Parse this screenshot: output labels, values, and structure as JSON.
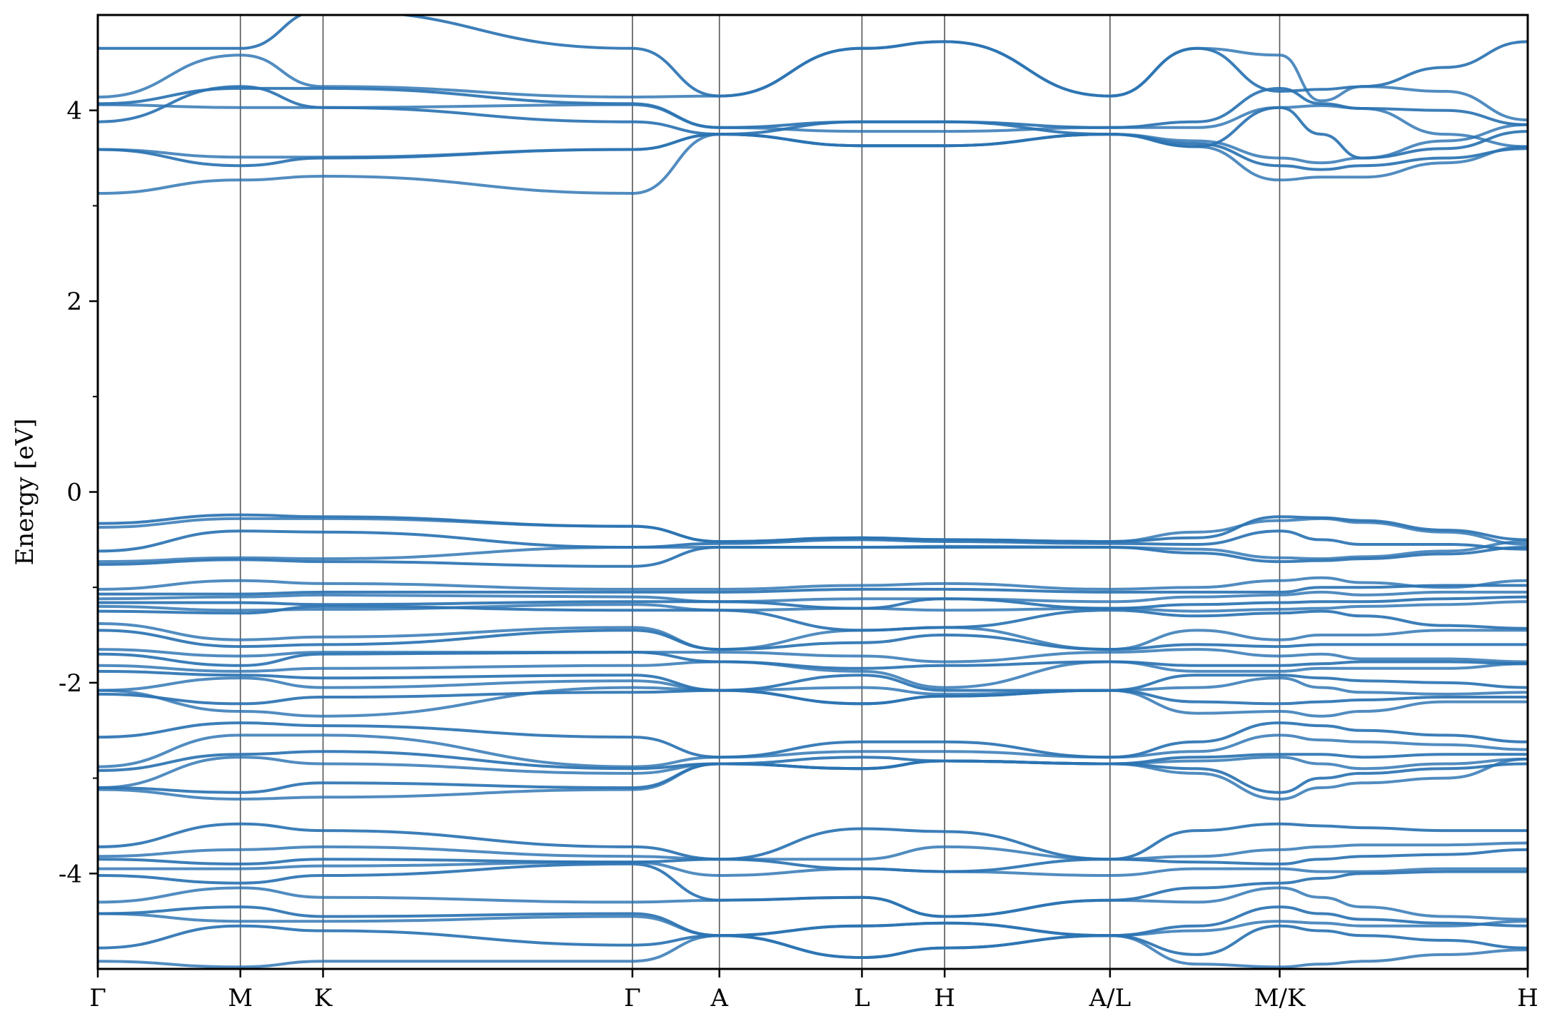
{
  "chart_data": {
    "type": "line",
    "title": "",
    "xlabel": "",
    "ylabel": "Energy [eV]",
    "ylim": [
      -5,
      5
    ],
    "yticks": [
      -4,
      -2,
      0,
      2,
      4
    ],
    "yticklabels": [
      "-4",
      "-2",
      "0",
      "2",
      "4"
    ],
    "yminor_ticks": [
      -3,
      -1,
      1,
      3
    ],
    "grid": false,
    "legend": "none",
    "line_color": "#2b73b2",
    "path_x": [
      0,
      1.0,
      1.58,
      3.75,
      4.36,
      5.36,
      5.94,
      7.1,
      7.71,
      8.29,
      8.58,
      8.87,
      9.45,
      10.03
    ],
    "high_symmetry_points": [
      {
        "label": "Γ",
        "x": 0
      },
      {
        "label": "M",
        "x": 1.0
      },
      {
        "label": "K",
        "x": 1.58
      },
      {
        "label": "Γ",
        "x": 3.75
      },
      {
        "label": "A",
        "x": 4.36
      },
      {
        "label": "L",
        "x": 5.36
      },
      {
        "label": "H",
        "x": 5.94
      },
      {
        "label": "A/L",
        "x": 7.1
      },
      {
        "label": "M/K",
        "x": 8.29
      },
      {
        "label": "H",
        "x": 10.03
      }
    ],
    "segments": [
      {
        "from": "Γ",
        "to": "M",
        "x0": 0,
        "x1": 1.0
      },
      {
        "from": "M",
        "to": "K",
        "x0": 1.0,
        "x1": 1.58
      },
      {
        "from": "K",
        "to": "Γ",
        "x0": 1.58,
        "x1": 3.75
      },
      {
        "from": "Γ",
        "to": "A",
        "x0": 3.75,
        "x1": 4.36
      },
      {
        "from": "A",
        "to": "L",
        "x0": 4.36,
        "x1": 5.36
      },
      {
        "from": "L",
        "to": "H",
        "x0": 5.36,
        "x1": 5.94
      },
      {
        "from": "H",
        "to": "A",
        "x0": 5.94,
        "x1": 7.1
      },
      {
        "from": "L",
        "to": "M",
        "x0": 7.1,
        "x1": 8.29
      },
      {
        "from": "K",
        "to": "H",
        "x0": 8.29,
        "x1": 10.03
      }
    ],
    "series": [
      {
        "values": [
          4.65,
          4.65,
          5.05,
          4.65,
          4.15,
          4.65,
          4.72,
          4.15,
          4.65,
          4.2,
          4.22,
          4.25,
          4.45,
          4.72
        ]
      },
      {
        "values": [
          4.14,
          4.58,
          4.25,
          4.14,
          4.15,
          4.65,
          4.72,
          4.15,
          4.65,
          4.58,
          4.1,
          4.25,
          4.2,
          3.9
        ]
      },
      {
        "values": [
          4.07,
          4.23,
          4.23,
          4.07,
          3.82,
          3.88,
          3.88,
          3.82,
          3.88,
          4.23,
          4.07,
          4.02,
          4.0,
          3.85
        ]
      },
      {
        "values": [
          4.06,
          4.03,
          4.03,
          4.06,
          3.82,
          3.78,
          3.78,
          3.82,
          3.82,
          4.03,
          4.05,
          4.02,
          3.75,
          3.62
        ]
      },
      {
        "values": [
          3.88,
          4.25,
          4.03,
          3.88,
          3.75,
          3.88,
          3.88,
          3.75,
          3.62,
          4.03,
          3.75,
          3.5,
          3.6,
          3.78
        ]
      },
      {
        "values": [
          3.59,
          3.51,
          3.51,
          3.59,
          3.75,
          3.63,
          3.63,
          3.75,
          3.68,
          3.5,
          3.45,
          3.5,
          3.68,
          3.85
        ]
      },
      {
        "values": [
          3.59,
          3.42,
          3.5,
          3.59,
          3.75,
          3.63,
          3.63,
          3.75,
          3.65,
          3.42,
          3.38,
          3.42,
          3.5,
          3.6
        ]
      },
      {
        "values": [
          3.13,
          3.27,
          3.31,
          3.13,
          3.75,
          3.63,
          3.63,
          3.75,
          3.62,
          3.27,
          3.3,
          3.3,
          3.45,
          3.62
        ]
      },
      {
        "values": [
          -0.33,
          -0.24,
          -0.26,
          -0.36,
          -0.52,
          -0.48,
          -0.5,
          -0.52,
          -0.48,
          -0.26,
          -0.27,
          -0.3,
          -0.4,
          -0.5
        ]
      },
      {
        "values": [
          -0.37,
          -0.28,
          -0.28,
          -0.36,
          -0.52,
          -0.48,
          -0.5,
          -0.52,
          -0.42,
          -0.3,
          -0.28,
          -0.32,
          -0.42,
          -0.55
        ]
      },
      {
        "values": [
          -0.62,
          -0.41,
          -0.42,
          -0.58,
          -0.54,
          -0.5,
          -0.52,
          -0.54,
          -0.55,
          -0.41,
          -0.5,
          -0.55,
          -0.55,
          -0.6
        ]
      },
      {
        "values": [
          -0.73,
          -0.69,
          -0.7,
          -0.58,
          -0.58,
          -0.58,
          -0.57,
          -0.58,
          -0.6,
          -0.69,
          -0.7,
          -0.68,
          -0.62,
          -0.52
        ]
      },
      {
        "values": [
          -0.76,
          -0.71,
          -0.73,
          -0.78,
          -0.58,
          -0.58,
          -0.58,
          -0.58,
          -0.64,
          -0.73,
          -0.72,
          -0.7,
          -0.65,
          -0.58
        ]
      },
      {
        "values": [
          -1.02,
          -0.93,
          -0.96,
          -1.02,
          -1.02,
          -0.98,
          -0.96,
          -1.02,
          -1.0,
          -0.93,
          -0.9,
          -0.95,
          -1.0,
          -0.93
        ]
      },
      {
        "values": [
          -1.07,
          -1.07,
          -1.05,
          -1.05,
          -1.05,
          -1.02,
          -1.02,
          -1.05,
          -1.05,
          -1.05,
          -1.0,
          -1.0,
          -0.98,
          -0.98
        ]
      },
      {
        "values": [
          -1.12,
          -1.1,
          -1.08,
          -1.1,
          -1.15,
          -1.12,
          -1.12,
          -1.15,
          -1.1,
          -1.08,
          -1.05,
          -1.08,
          -1.05,
          -1.05
        ]
      },
      {
        "values": [
          -1.16,
          -1.16,
          -1.18,
          -1.15,
          -1.15,
          -1.22,
          -1.12,
          -1.22,
          -1.18,
          -1.16,
          -1.15,
          -1.15,
          -1.12,
          -1.1
        ]
      },
      {
        "values": [
          -1.2,
          -1.24,
          -1.23,
          -1.18,
          -1.24,
          -1.22,
          -1.24,
          -1.22,
          -1.25,
          -1.23,
          -1.22,
          -1.2,
          -1.18,
          -1.15
        ]
      },
      {
        "values": [
          -1.25,
          -1.27,
          -1.2,
          -1.24,
          -1.24,
          -1.45,
          -1.42,
          -1.24,
          -1.3,
          -1.27,
          -1.25,
          -1.3,
          -1.4,
          -1.43
        ]
      },
      {
        "values": [
          -1.38,
          -1.55,
          -1.52,
          -1.42,
          -1.65,
          -1.45,
          -1.42,
          -1.65,
          -1.45,
          -1.55,
          -1.5,
          -1.5,
          -1.45,
          -1.45
        ]
      },
      {
        "values": [
          -1.45,
          -1.62,
          -1.6,
          -1.45,
          -1.65,
          -1.58,
          -1.5,
          -1.65,
          -1.6,
          -1.62,
          -1.6,
          -1.6,
          -1.6,
          -1.6
        ]
      },
      {
        "values": [
          -1.65,
          -1.72,
          -1.68,
          -1.68,
          -1.68,
          -1.72,
          -1.78,
          -1.68,
          -1.65,
          -1.72,
          -1.7,
          -1.75,
          -1.75,
          -1.78
        ]
      },
      {
        "values": [
          -1.7,
          -1.82,
          -1.7,
          -1.68,
          -1.78,
          -1.85,
          -1.82,
          -1.78,
          -1.82,
          -1.82,
          -1.8,
          -1.78,
          -1.78,
          -1.8
        ]
      },
      {
        "values": [
          -1.82,
          -1.88,
          -1.85,
          -1.82,
          -1.78,
          -1.88,
          -2.05,
          -1.78,
          -1.88,
          -1.88,
          -1.85,
          -1.85,
          -1.85,
          -1.8
        ]
      },
      {
        "values": [
          -1.88,
          -1.92,
          -1.95,
          -1.92,
          -2.08,
          -1.92,
          -2.08,
          -2.08,
          -1.92,
          -1.92,
          -1.95,
          -1.98,
          -2.0,
          -2.05
        ]
      },
      {
        "values": [
          -2.08,
          -1.95,
          -2.05,
          -1.98,
          -2.08,
          -2.05,
          -2.12,
          -2.08,
          -2.05,
          -1.95,
          -2.05,
          -2.1,
          -2.12,
          -2.1
        ]
      },
      {
        "values": [
          -2.12,
          -2.22,
          -2.15,
          -2.1,
          -2.08,
          -2.22,
          -2.14,
          -2.08,
          -2.2,
          -2.22,
          -2.2,
          -2.18,
          -2.15,
          -2.15
        ]
      },
      {
        "values": [
          -2.08,
          -2.3,
          -2.35,
          -2.05,
          -2.08,
          -2.22,
          -2.14,
          -2.08,
          -2.32,
          -2.3,
          -2.35,
          -2.3,
          -2.2,
          -2.2
        ]
      },
      {
        "values": [
          -2.57,
          -2.42,
          -2.45,
          -2.57,
          -2.78,
          -2.62,
          -2.62,
          -2.78,
          -2.62,
          -2.42,
          -2.45,
          -2.5,
          -2.55,
          -2.62
        ]
      },
      {
        "values": [
          -2.88,
          -2.55,
          -2.55,
          -2.88,
          -2.78,
          -2.72,
          -2.72,
          -2.78,
          -2.72,
          -2.55,
          -2.6,
          -2.62,
          -2.65,
          -2.7
        ]
      },
      {
        "values": [
          -2.92,
          -2.75,
          -2.72,
          -2.9,
          -2.85,
          -2.78,
          -2.82,
          -2.85,
          -2.78,
          -2.75,
          -2.75,
          -2.78,
          -2.75,
          -2.75
        ]
      },
      {
        "values": [
          -3.1,
          -2.78,
          -2.85,
          -2.95,
          -2.85,
          -2.9,
          -2.82,
          -2.85,
          -2.82,
          -2.78,
          -2.85,
          -2.9,
          -2.85,
          -2.8
        ]
      },
      {
        "values": [
          -3.1,
          -3.15,
          -3.05,
          -3.1,
          -2.85,
          -2.9,
          -2.82,
          -2.85,
          -2.9,
          -3.15,
          -3.0,
          -2.95,
          -2.9,
          -2.85
        ]
      },
      {
        "values": [
          -3.12,
          -3.22,
          -3.2,
          -3.12,
          -2.85,
          -2.9,
          -2.82,
          -2.85,
          -2.95,
          -3.22,
          -3.1,
          -3.05,
          -3.0,
          -2.8
        ]
      },
      {
        "values": [
          -3.72,
          -3.48,
          -3.55,
          -3.72,
          -3.85,
          -3.53,
          -3.56,
          -3.85,
          -3.55,
          -3.48,
          -3.5,
          -3.52,
          -3.55,
          -3.55
        ]
      },
      {
        "values": [
          -3.82,
          -3.75,
          -3.72,
          -3.82,
          -3.85,
          -3.85,
          -3.72,
          -3.85,
          -3.82,
          -3.75,
          -3.72,
          -3.7,
          -3.7,
          -3.68
        ]
      },
      {
        "values": [
          -3.85,
          -3.9,
          -3.85,
          -3.88,
          -3.85,
          -3.95,
          -3.98,
          -3.85,
          -3.88,
          -3.9,
          -3.85,
          -3.82,
          -3.8,
          -3.75
        ]
      },
      {
        "values": [
          -3.95,
          -3.95,
          -3.92,
          -3.88,
          -4.02,
          -3.95,
          -3.98,
          -4.02,
          -3.95,
          -3.95,
          -3.98,
          -3.98,
          -3.95,
          -3.95
        ]
      },
      {
        "values": [
          -4.02,
          -4.1,
          -4.02,
          -3.9,
          -4.28,
          -4.25,
          -4.45,
          -4.28,
          -4.15,
          -4.1,
          -4.05,
          -4.0,
          -3.98,
          -3.98
        ]
      },
      {
        "values": [
          -4.3,
          -4.15,
          -4.25,
          -4.3,
          -4.28,
          -4.25,
          -4.45,
          -4.28,
          -4.3,
          -4.15,
          -4.25,
          -4.35,
          -4.45,
          -4.48
        ]
      },
      {
        "values": [
          -4.42,
          -4.35,
          -4.45,
          -4.42,
          -4.65,
          -4.55,
          -4.52,
          -4.65,
          -4.55,
          -4.35,
          -4.42,
          -4.48,
          -4.52,
          -4.55
        ]
      },
      {
        "values": [
          -4.42,
          -4.5,
          -4.5,
          -4.45,
          -4.65,
          -4.55,
          -4.52,
          -4.65,
          -4.6,
          -4.5,
          -4.52,
          -4.55,
          -4.55,
          -4.5
        ]
      },
      {
        "values": [
          -4.78,
          -4.55,
          -4.6,
          -4.75,
          -4.65,
          -4.88,
          -4.78,
          -4.65,
          -4.85,
          -4.55,
          -4.6,
          -4.65,
          -4.7,
          -4.78
        ]
      },
      {
        "values": [
          -4.92,
          -4.98,
          -4.92,
          -4.92,
          -4.65,
          -4.88,
          -4.78,
          -4.65,
          -4.95,
          -4.98,
          -4.95,
          -4.92,
          -4.85,
          -4.8
        ]
      }
    ]
  }
}
